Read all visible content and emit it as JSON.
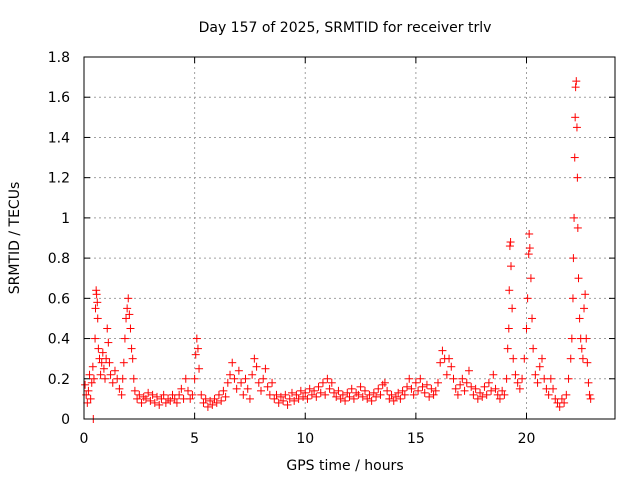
{
  "chart_data": {
    "type": "scatter",
    "title": "Day 157 of 2025, SRMTID for receiver trlv",
    "xlabel": "GPS time / hours",
    "ylabel": "SRMTID / TECUs",
    "xlim": [
      0,
      24
    ],
    "ylim": [
      0,
      1.8
    ],
    "xticks": [
      0,
      5,
      10,
      15,
      20
    ],
    "xtick_labels": [
      "0",
      "5",
      "10",
      "15",
      "20"
    ],
    "yticks": [
      0,
      0.2,
      0.4,
      0.6,
      0.8,
      1,
      1.2,
      1.4,
      1.6,
      1.8
    ],
    "ytick_labels": [
      "0",
      "0.2",
      "0.4",
      "0.6",
      "0.8",
      "1",
      "1.2",
      "1.4",
      "1.6",
      "1.8"
    ],
    "grid": true,
    "marker": "plus",
    "color": "#ff0000",
    "series": [
      {
        "name": "SRMTID",
        "points": [
          [
            0.05,
            0.17
          ],
          [
            0.1,
            0.12
          ],
          [
            0.15,
            0.08
          ],
          [
            0.2,
            0.14
          ],
          [
            0.25,
            0.22
          ],
          [
            0.3,
            0.1
          ],
          [
            0.35,
            0.18
          ],
          [
            0.4,
            0.26
          ],
          [
            0.42,
            0.0
          ],
          [
            0.45,
            0.2
          ],
          [
            0.5,
            0.4
          ],
          [
            0.52,
            0.55
          ],
          [
            0.55,
            0.64
          ],
          [
            0.57,
            0.62
          ],
          [
            0.6,
            0.58
          ],
          [
            0.62,
            0.5
          ],
          [
            0.65,
            0.35
          ],
          [
            0.7,
            0.3
          ],
          [
            0.75,
            0.22
          ],
          [
            0.8,
            0.28
          ],
          [
            0.85,
            0.33
          ],
          [
            0.9,
            0.25
          ],
          [
            0.95,
            0.2
          ],
          [
            1.0,
            0.3
          ],
          [
            1.05,
            0.45
          ],
          [
            1.1,
            0.38
          ],
          [
            1.15,
            0.28
          ],
          [
            1.2,
            0.22
          ],
          [
            1.3,
            0.18
          ],
          [
            1.4,
            0.24
          ],
          [
            1.5,
            0.2
          ],
          [
            1.6,
            0.15
          ],
          [
            1.7,
            0.12
          ],
          [
            1.75,
            0.2
          ],
          [
            1.8,
            0.28
          ],
          [
            1.85,
            0.4
          ],
          [
            1.9,
            0.5
          ],
          [
            1.95,
            0.55
          ],
          [
            2.0,
            0.6
          ],
          [
            2.05,
            0.52
          ],
          [
            2.1,
            0.45
          ],
          [
            2.15,
            0.35
          ],
          [
            2.2,
            0.3
          ],
          [
            2.25,
            0.2
          ],
          [
            2.3,
            0.14
          ],
          [
            2.4,
            0.1
          ],
          [
            2.5,
            0.12
          ],
          [
            2.6,
            0.08
          ],
          [
            2.7,
            0.11
          ],
          [
            2.8,
            0.1
          ],
          [
            2.9,
            0.13
          ],
          [
            3.0,
            0.09
          ],
          [
            3.1,
            0.12
          ],
          [
            3.2,
            0.08
          ],
          [
            3.3,
            0.11
          ],
          [
            3.4,
            0.07
          ],
          [
            3.5,
            0.1
          ],
          [
            3.6,
            0.12
          ],
          [
            3.7,
            0.08
          ],
          [
            3.8,
            0.1
          ],
          [
            3.9,
            0.09
          ],
          [
            4.0,
            0.12
          ],
          [
            4.1,
            0.1
          ],
          [
            4.2,
            0.08
          ],
          [
            4.3,
            0.12
          ],
          [
            4.4,
            0.15
          ],
          [
            4.5,
            0.1
          ],
          [
            4.6,
            0.2
          ],
          [
            4.7,
            0.14
          ],
          [
            4.8,
            0.1
          ],
          [
            4.9,
            0.12
          ],
          [
            5.0,
            0.2
          ],
          [
            5.05,
            0.32
          ],
          [
            5.1,
            0.4
          ],
          [
            5.15,
            0.35
          ],
          [
            5.2,
            0.25
          ],
          [
            5.3,
            0.12
          ],
          [
            5.4,
            0.08
          ],
          [
            5.5,
            0.1
          ],
          [
            5.6,
            0.06
          ],
          [
            5.7,
            0.09
          ],
          [
            5.8,
            0.07
          ],
          [
            5.9,
            0.1
          ],
          [
            6.0,
            0.08
          ],
          [
            6.1,
            0.12
          ],
          [
            6.2,
            0.09
          ],
          [
            6.3,
            0.14
          ],
          [
            6.4,
            0.11
          ],
          [
            6.5,
            0.18
          ],
          [
            6.6,
            0.22
          ],
          [
            6.7,
            0.28
          ],
          [
            6.8,
            0.2
          ],
          [
            6.9,
            0.15
          ],
          [
            7.0,
            0.24
          ],
          [
            7.1,
            0.18
          ],
          [
            7.2,
            0.12
          ],
          [
            7.3,
            0.2
          ],
          [
            7.4,
            0.15
          ],
          [
            7.5,
            0.1
          ],
          [
            7.6,
            0.22
          ],
          [
            7.7,
            0.3
          ],
          [
            7.8,
            0.26
          ],
          [
            7.9,
            0.18
          ],
          [
            8.0,
            0.14
          ],
          [
            8.1,
            0.2
          ],
          [
            8.2,
            0.25
          ],
          [
            8.3,
            0.16
          ],
          [
            8.4,
            0.12
          ],
          [
            8.5,
            0.18
          ],
          [
            8.6,
            0.1
          ],
          [
            8.7,
            0.12
          ],
          [
            8.8,
            0.08
          ],
          [
            8.9,
            0.11
          ],
          [
            9.0,
            0.09
          ],
          [
            9.1,
            0.12
          ],
          [
            9.2,
            0.07
          ],
          [
            9.3,
            0.1
          ],
          [
            9.4,
            0.13
          ],
          [
            9.5,
            0.09
          ],
          [
            9.6,
            0.12
          ],
          [
            9.7,
            0.1
          ],
          [
            9.8,
            0.14
          ],
          [
            9.9,
            0.11
          ],
          [
            10.0,
            0.13
          ],
          [
            10.1,
            0.1
          ],
          [
            10.2,
            0.15
          ],
          [
            10.3,
            0.12
          ],
          [
            10.4,
            0.14
          ],
          [
            10.5,
            0.11
          ],
          [
            10.6,
            0.16
          ],
          [
            10.7,
            0.13
          ],
          [
            10.8,
            0.18
          ],
          [
            10.9,
            0.12
          ],
          [
            11.0,
            0.2
          ],
          [
            11.1,
            0.15
          ],
          [
            11.2,
            0.18
          ],
          [
            11.3,
            0.13
          ],
          [
            11.4,
            0.11
          ],
          [
            11.5,
            0.14
          ],
          [
            11.6,
            0.1
          ],
          [
            11.7,
            0.12
          ],
          [
            11.8,
            0.09
          ],
          [
            11.9,
            0.13
          ],
          [
            12.0,
            0.11
          ],
          [
            12.1,
            0.15
          ],
          [
            12.2,
            0.1
          ],
          [
            12.3,
            0.13
          ],
          [
            12.4,
            0.12
          ],
          [
            12.5,
            0.16
          ],
          [
            12.6,
            0.11
          ],
          [
            12.7,
            0.14
          ],
          [
            12.8,
            0.1
          ],
          [
            12.9,
            0.12
          ],
          [
            13.0,
            0.09
          ],
          [
            13.1,
            0.13
          ],
          [
            13.2,
            0.11
          ],
          [
            13.3,
            0.15
          ],
          [
            13.4,
            0.12
          ],
          [
            13.5,
            0.17
          ],
          [
            13.6,
            0.18
          ],
          [
            13.7,
            0.14
          ],
          [
            13.8,
            0.1
          ],
          [
            13.9,
            0.12
          ],
          [
            14.0,
            0.09
          ],
          [
            14.1,
            0.11
          ],
          [
            14.2,
            0.13
          ],
          [
            14.3,
            0.1
          ],
          [
            14.4,
            0.14
          ],
          [
            14.5,
            0.12
          ],
          [
            14.6,
            0.16
          ],
          [
            14.7,
            0.2
          ],
          [
            14.8,
            0.15
          ],
          [
            14.9,
            0.12
          ],
          [
            15.0,
            0.18
          ],
          [
            15.1,
            0.14
          ],
          [
            15.2,
            0.2
          ],
          [
            15.3,
            0.16
          ],
          [
            15.4,
            0.13
          ],
          [
            15.5,
            0.17
          ],
          [
            15.6,
            0.11
          ],
          [
            15.7,
            0.15
          ],
          [
            15.8,
            0.12
          ],
          [
            15.9,
            0.14
          ],
          [
            16.0,
            0.18
          ],
          [
            16.1,
            0.28
          ],
          [
            16.2,
            0.34
          ],
          [
            16.3,
            0.3
          ],
          [
            16.4,
            0.22
          ],
          [
            16.5,
            0.3
          ],
          [
            16.6,
            0.26
          ],
          [
            16.7,
            0.2
          ],
          [
            16.8,
            0.15
          ],
          [
            16.9,
            0.12
          ],
          [
            17.0,
            0.17
          ],
          [
            17.1,
            0.2
          ],
          [
            17.2,
            0.14
          ],
          [
            17.3,
            0.18
          ],
          [
            17.4,
            0.24
          ],
          [
            17.5,
            0.16
          ],
          [
            17.6,
            0.12
          ],
          [
            17.7,
            0.15
          ],
          [
            17.8,
            0.1
          ],
          [
            17.9,
            0.13
          ],
          [
            18.0,
            0.11
          ],
          [
            18.1,
            0.16
          ],
          [
            18.2,
            0.12
          ],
          [
            18.3,
            0.18
          ],
          [
            18.4,
            0.14
          ],
          [
            18.5,
            0.22
          ],
          [
            18.6,
            0.15
          ],
          [
            18.7,
            0.12
          ],
          [
            18.8,
            0.1
          ],
          [
            18.9,
            0.14
          ],
          [
            19.0,
            0.12
          ],
          [
            19.1,
            0.2
          ],
          [
            19.15,
            0.35
          ],
          [
            19.2,
            0.45
          ],
          [
            19.22,
            0.64
          ],
          [
            19.25,
            0.86
          ],
          [
            19.28,
            0.88
          ],
          [
            19.3,
            0.76
          ],
          [
            19.35,
            0.55
          ],
          [
            19.4,
            0.3
          ],
          [
            19.5,
            0.22
          ],
          [
            19.6,
            0.18
          ],
          [
            19.7,
            0.15
          ],
          [
            19.8,
            0.2
          ],
          [
            19.9,
            0.3
          ],
          [
            20.0,
            0.45
          ],
          [
            20.05,
            0.6
          ],
          [
            20.1,
            0.82
          ],
          [
            20.12,
            0.92
          ],
          [
            20.15,
            0.85
          ],
          [
            20.2,
            0.7
          ],
          [
            20.25,
            0.5
          ],
          [
            20.3,
            0.35
          ],
          [
            20.4,
            0.22
          ],
          [
            20.5,
            0.18
          ],
          [
            20.6,
            0.26
          ],
          [
            20.7,
            0.3
          ],
          [
            20.8,
            0.2
          ],
          [
            20.9,
            0.15
          ],
          [
            21.0,
            0.12
          ],
          [
            21.1,
            0.2
          ],
          [
            21.2,
            0.15
          ],
          [
            21.3,
            0.1
          ],
          [
            21.4,
            0.08
          ],
          [
            21.5,
            0.06
          ],
          [
            21.6,
            0.1
          ],
          [
            21.7,
            0.08
          ],
          [
            21.8,
            0.12
          ],
          [
            21.9,
            0.2
          ],
          [
            22.0,
            0.3
          ],
          [
            22.05,
            0.4
          ],
          [
            22.1,
            0.6
          ],
          [
            22.12,
            0.8
          ],
          [
            22.15,
            1.0
          ],
          [
            22.18,
            1.3
          ],
          [
            22.2,
            1.5
          ],
          [
            22.22,
            1.65
          ],
          [
            22.25,
            1.68
          ],
          [
            22.28,
            1.45
          ],
          [
            22.3,
            1.2
          ],
          [
            22.32,
            0.95
          ],
          [
            22.35,
            0.7
          ],
          [
            22.4,
            0.5
          ],
          [
            22.45,
            0.4
          ],
          [
            22.5,
            0.35
          ],
          [
            22.55,
            0.3
          ],
          [
            22.6,
            0.55
          ],
          [
            22.65,
            0.62
          ],
          [
            22.7,
            0.4
          ],
          [
            22.75,
            0.28
          ],
          [
            22.8,
            0.18
          ],
          [
            22.85,
            0.12
          ],
          [
            22.9,
            0.1
          ]
        ]
      }
    ]
  }
}
